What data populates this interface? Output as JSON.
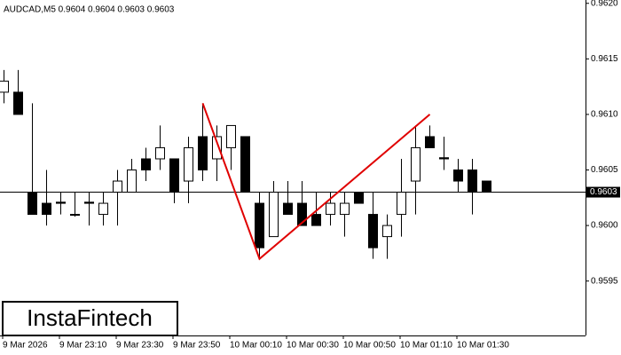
{
  "chart_data": {
    "type": "candlestick",
    "header": "AUDCAD,M5  0.9604 0.9604 0.9603 0.9603",
    "watermark": "InstaFintech",
    "categories": [
      "9 Mar 2026",
      null,
      null,
      null,
      "9 Mar 23:10",
      null,
      null,
      null,
      "9 Mar 23:30",
      null,
      null,
      null,
      "9 Mar 23:50",
      null,
      null,
      null,
      "10 Mar 00:10",
      null,
      null,
      null,
      "10 Mar 00:30",
      null,
      null,
      null,
      "10 Mar 00:50",
      null,
      null,
      null,
      "10 Mar 01:10",
      null,
      null,
      null,
      "10 Mar 01:30",
      null,
      null
    ],
    "open": [
      0.9612,
      0.9612,
      0.9603,
      0.9602,
      0.96021,
      0.9601,
      0.96021,
      0.9601,
      0.9603,
      0.9603,
      0.9606,
      0.9606,
      0.9606,
      0.9604,
      0.9608,
      0.9606,
      0.9607,
      0.9608,
      0.9602,
      0.9599,
      0.9602,
      0.9602,
      0.9601,
      0.9601,
      0.9601,
      0.9603,
      0.9601,
      0.9599,
      0.9601,
      0.9604,
      0.9608,
      0.96061,
      0.9605,
      0.9605,
      0.9604
    ],
    "high": [
      0.9614,
      0.9614,
      0.9611,
      0.9605,
      0.9603,
      0.9603,
      0.9603,
      0.9603,
      0.9605,
      0.9606,
      0.9607,
      0.9609,
      0.9606,
      0.9608,
      0.9611,
      0.9609,
      0.9609,
      0.9608,
      0.9603,
      0.9604,
      0.9604,
      0.9604,
      0.9603,
      0.9603,
      0.9603,
      0.9603,
      0.9603,
      0.9601,
      0.9606,
      0.9609,
      0.9609,
      0.9608,
      0.9606,
      0.9606,
      0.9604
    ],
    "low": [
      0.9611,
      0.961,
      0.9601,
      0.96,
      0.9601,
      0.96008,
      0.96,
      0.96,
      0.96,
      0.9603,
      0.9604,
      0.9605,
      0.9602,
      0.9602,
      0.9604,
      0.9604,
      0.9605,
      0.9603,
      0.9597,
      0.9599,
      0.9601,
      0.96,
      0.96,
      0.96,
      0.9599,
      0.9602,
      0.9597,
      0.9597,
      0.9599,
      0.9601,
      0.9607,
      0.9605,
      0.9603,
      0.9601,
      0.9603
    ],
    "close": [
      0.9613,
      0.961,
      0.9601,
      0.9601,
      0.9602,
      0.9601,
      0.9602,
      0.9602,
      0.9604,
      0.9605,
      0.9605,
      0.9607,
      0.9603,
      0.9607,
      0.9605,
      0.9608,
      0.9609,
      0.9603,
      0.9598,
      0.9603,
      0.9601,
      0.96,
      0.96,
      0.9602,
      0.9602,
      0.9602,
      0.9598,
      0.96,
      0.9603,
      0.9607,
      0.9607,
      0.9606,
      0.9604,
      0.9603,
      0.9603
    ],
    "up_color": "#ffffff",
    "down_color": "#000000",
    "last_price": 0.9603,
    "pattern": {
      "color": "#e00000",
      "points": [
        {
          "index": 14,
          "price": 0.9611
        },
        {
          "index": 18,
          "price": 0.9597
        },
        {
          "index": 30,
          "price": 0.961
        }
      ]
    },
    "ylim": [
      0.95901,
      0.96203
    ],
    "yticks": [
      {
        "value": 0.962,
        "label": "0.9620"
      },
      {
        "value": 0.9615,
        "label": "0.9615"
      },
      {
        "value": 0.961,
        "label": "0.9610"
      },
      {
        "value": 0.9605,
        "label": "0.9605"
      },
      {
        "value": 0.96,
        "label": "0.9600"
      },
      {
        "value": 0.9595,
        "label": "0.9595"
      }
    ]
  }
}
